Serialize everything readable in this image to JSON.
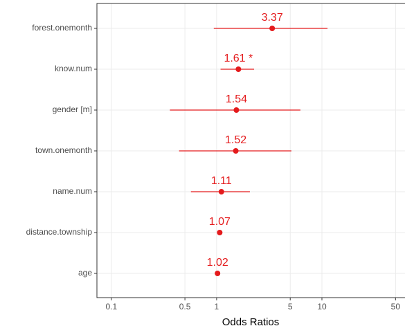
{
  "chart_data": {
    "type": "forest",
    "x_label": "Odds Ratios",
    "categories": [
      "forest.onemonth",
      "know.num",
      "gender [m]",
      "town.onemonth",
      "name.num",
      "distance.township",
      "age"
    ],
    "values": [
      3.37,
      1.61,
      1.54,
      1.52,
      1.11,
      1.07,
      1.02
    ],
    "value_labels": [
      "3.37",
      "1.61 *",
      "1.54",
      "1.52",
      "1.11",
      "1.07",
      "1.02"
    ],
    "lower": [
      0.94,
      1.09,
      0.36,
      0.44,
      0.57,
      1.03,
      1.0
    ],
    "upper": [
      11.3,
      2.27,
      6.25,
      5.13,
      2.07,
      1.11,
      1.04
    ],
    "color": "#e41a1c",
    "x_log": true,
    "xlim": [
      0.073,
      61.5
    ],
    "xticks": [
      0.1,
      0.5,
      1,
      5,
      10,
      50
    ],
    "grid": true
  }
}
